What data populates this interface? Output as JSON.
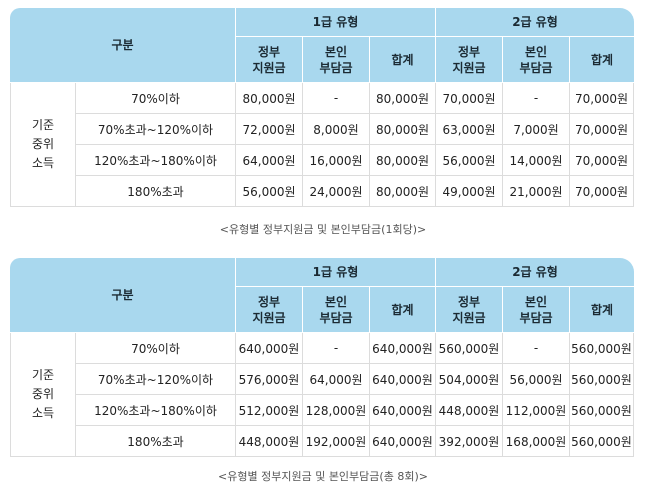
{
  "tables": [
    {
      "header": {
        "category": "구분",
        "type1": "1급 유형",
        "type2": "2급 유형",
        "gov_line1": "정부",
        "gov_line2": "지원금",
        "self_line1": "본인",
        "self_line2": "부담금",
        "total": "합계"
      },
      "group": [
        "기준",
        "중위",
        "소득"
      ],
      "rows": [
        {
          "label": "70%이하",
          "t1_gov": "80,000원",
          "t1_self": "-",
          "t1_total": "80,000원",
          "t2_gov": "70,000원",
          "t2_self": "-",
          "t2_total": "70,000원"
        },
        {
          "label": "70%초과~120%이하",
          "t1_gov": "72,000원",
          "t1_self": "8,000원",
          "t1_total": "80,000원",
          "t2_gov": "63,000원",
          "t2_self": "7,000원",
          "t2_total": "70,000원"
        },
        {
          "label": "120%초과~180%이하",
          "t1_gov": "64,000원",
          "t1_self": "16,000원",
          "t1_total": "80,000원",
          "t2_gov": "56,000원",
          "t2_self": "14,000원",
          "t2_total": "70,000원"
        },
        {
          "label": "180%초과",
          "t1_gov": "56,000원",
          "t1_self": "24,000원",
          "t1_total": "80,000원",
          "t2_gov": "49,000원",
          "t2_self": "21,000원",
          "t2_total": "70,000원"
        }
      ],
      "caption": "<유형별 정부지원금 및 본인부담금(1회당)>"
    },
    {
      "header": {
        "category": "구분",
        "type1": "1급 유형",
        "type2": "2급 유형",
        "gov_line1": "정부",
        "gov_line2": "지원금",
        "self_line1": "본인",
        "self_line2": "부담금",
        "total": "합계"
      },
      "group": [
        "기준",
        "중위",
        "소득"
      ],
      "rows": [
        {
          "label": "70%이하",
          "t1_gov": "640,000원",
          "t1_self": "-",
          "t1_total": "640,000원",
          "t2_gov": "560,000원",
          "t2_self": "-",
          "t2_total": "560,000원"
        },
        {
          "label": "70%초과~120%이하",
          "t1_gov": "576,000원",
          "t1_self": "64,000원",
          "t1_total": "640,000원",
          "t2_gov": "504,000원",
          "t2_self": "56,000원",
          "t2_total": "560,000원"
        },
        {
          "label": "120%초과~180%이하",
          "t1_gov": "512,000원",
          "t1_self": "128,000원",
          "t1_total": "640,000원",
          "t2_gov": "448,000원",
          "t2_self": "112,000원",
          "t2_total": "560,000원"
        },
        {
          "label": "180%초과",
          "t1_gov": "448,000원",
          "t1_self": "192,000원",
          "t1_total": "640,000원",
          "t2_gov": "392,000원",
          "t2_self": "168,000원",
          "t2_total": "560,000원"
        }
      ],
      "caption": "<유형별 정부지원금 및 본인부담금(총 8회)>"
    }
  ]
}
